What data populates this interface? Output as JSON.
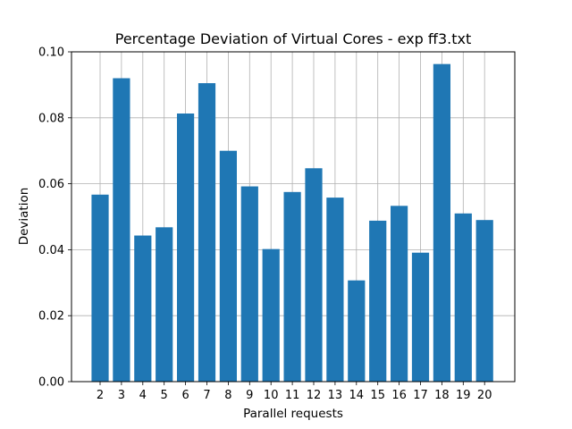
{
  "chart_data": {
    "type": "bar",
    "title": "Percentage Deviation of Virtual Cores - exp ff3.txt",
    "xlabel": "Parallel requests",
    "ylabel": "Deviation",
    "categories": [
      "2",
      "3",
      "4",
      "5",
      "6",
      "7",
      "8",
      "9",
      "10",
      "11",
      "12",
      "13",
      "14",
      "15",
      "16",
      "17",
      "18",
      "19",
      "20"
    ],
    "values": [
      0.0567,
      0.092,
      0.0443,
      0.0468,
      0.0813,
      0.0905,
      0.07,
      0.0592,
      0.0402,
      0.0575,
      0.0647,
      0.0558,
      0.0307,
      0.0488,
      0.0533,
      0.0391,
      0.0963,
      0.051,
      0.049
    ],
    "ylim": [
      0,
      0.1
    ],
    "yticks": [
      "0.00",
      "0.02",
      "0.04",
      "0.06",
      "0.08",
      "0.10"
    ],
    "grid": true,
    "bar_color": "#1f77b4",
    "grid_color": "#b0b0b0"
  }
}
